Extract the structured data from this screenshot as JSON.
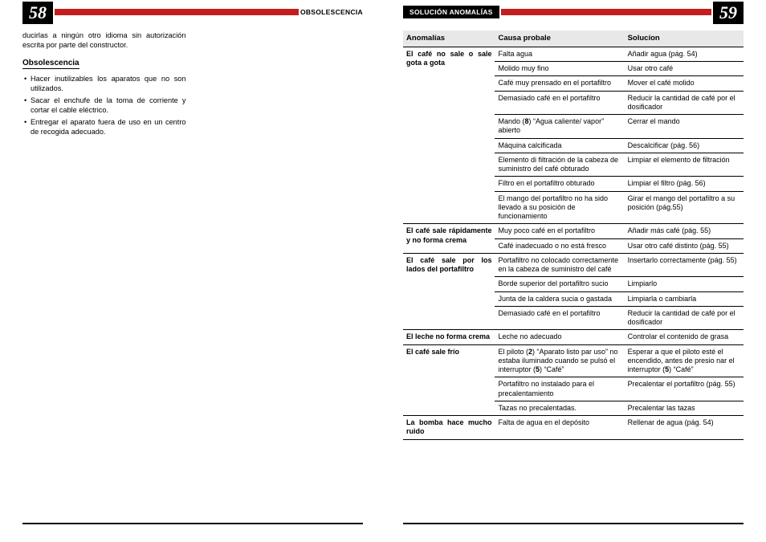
{
  "colors": {
    "red": "#c41e1e",
    "black": "#000000",
    "gray_header": "#e8e8e8"
  },
  "left": {
    "page_number": "58",
    "section_tag": "OBSOLESCENCIA",
    "intro_tail": "ducirlas a ningún otro idioma sin autorización escrita por parte del constructor.",
    "subhead": "Obsolescencia",
    "bullets": [
      "Hacer inutilizables los aparatos que no son utilizados.",
      "Sacar el enchufe de la toma de corriente y cortar el cable eléctrico.",
      "Entregar el aparato fuera de uso en un centro de recogida adecuado."
    ]
  },
  "right": {
    "page_number": "59",
    "section_tag": "SOLUCIÓN ANOMALÍAS",
    "table_headers": {
      "a": "Anomalías",
      "b": "Causa probale",
      "c": "Solucíon"
    },
    "groups": [
      {
        "anomaly": "El café no sale o sale gota a gota",
        "rows": [
          {
            "cause": "Falta agua",
            "solution": "Añadir agua (pág. 54)"
          },
          {
            "cause": "Molido muy fino",
            "solution": "Usar otro café"
          },
          {
            "cause": "Café muy prensado en el portafiltro",
            "solution": "Mover el café molido"
          },
          {
            "cause": "Demasiado café en el portafiltro",
            "solution": "Reducir la cantidad de café por el dosificador"
          },
          {
            "cause_html": "Mando (<b>8</b>) “Agua caliente/ vapor” abierto",
            "solution": "Cerrar el mando"
          },
          {
            "cause": "Máquina calcificada",
            "solution": "Descalcificar (pág. 56)"
          },
          {
            "cause": "Elemento di filtración de la cabeza de suministro del café obturado",
            "solution": "Limpiar el elemento de filtración"
          },
          {
            "cause": "Filtro en el portafiltro obturado",
            "solution": "Limpiar el filtro (pág. 56)"
          },
          {
            "cause": "El mango del portafiltro no ha sido llevado a su posición de funcionamiento",
            "solution": "Girar el mango del portafiltro a su posición (pág.55)"
          }
        ]
      },
      {
        "anomaly": "El café sale rápidamente y no forma crema",
        "rows": [
          {
            "cause": "Muy poco café en el portafiltro",
            "solution": "Añadir más café (pág. 55)"
          },
          {
            "cause": "Café inadecuado o no está fresco",
            "solution": "Usar otro café distinto (pág. 55)"
          }
        ]
      },
      {
        "anomaly": "El café sale por los lados del portafiltro",
        "rows": [
          {
            "cause": "Portafiltro no colocado correctamente en la cabeza de suministro del café",
            "solution": "Insertarlo correctamente (pág. 55)"
          },
          {
            "cause": "Borde superior del portafiltro sucio",
            "solution": "Limpiarlo"
          },
          {
            "cause": "Junta de la caldera sucia o gastada",
            "solution": "Limpiarla o cambiarla"
          },
          {
            "cause": "Demasiado café en el portafiltro",
            "solution": "Reducir la cantidad de café por el dosificador"
          }
        ]
      },
      {
        "anomaly": "El leche no forma crema",
        "rows": [
          {
            "cause": "Leche no adecuado",
            "solution": "Controlar el contenido de grasa"
          }
        ]
      },
      {
        "anomaly": "El café sale frío",
        "rows": [
          {
            "cause_html": "El piloto (<b>2</b>) “Aparato listo par uso” no estaba iluminado cuando se pulsó el interruptor (<b>5</b>) “Café”",
            "solution_html": "Esperar a que el piloto esté el encendido, antes de presio nar el interruptor (<b>5</b>) “Café”"
          },
          {
            "cause": "Portafiltro no instalado para el precalentamiento",
            "solution": "Precalentar el portafiltro (pág. 55)"
          },
          {
            "cause": "Tazas no precalentadas.",
            "solution": "Precalentar las tazas"
          }
        ]
      },
      {
        "anomaly": "La bomba hace mucho ruido",
        "rows": [
          {
            "cause": "Falta de agua en el depósito",
            "solution": "Rellenar de agua (pág. 54)"
          }
        ]
      }
    ]
  }
}
